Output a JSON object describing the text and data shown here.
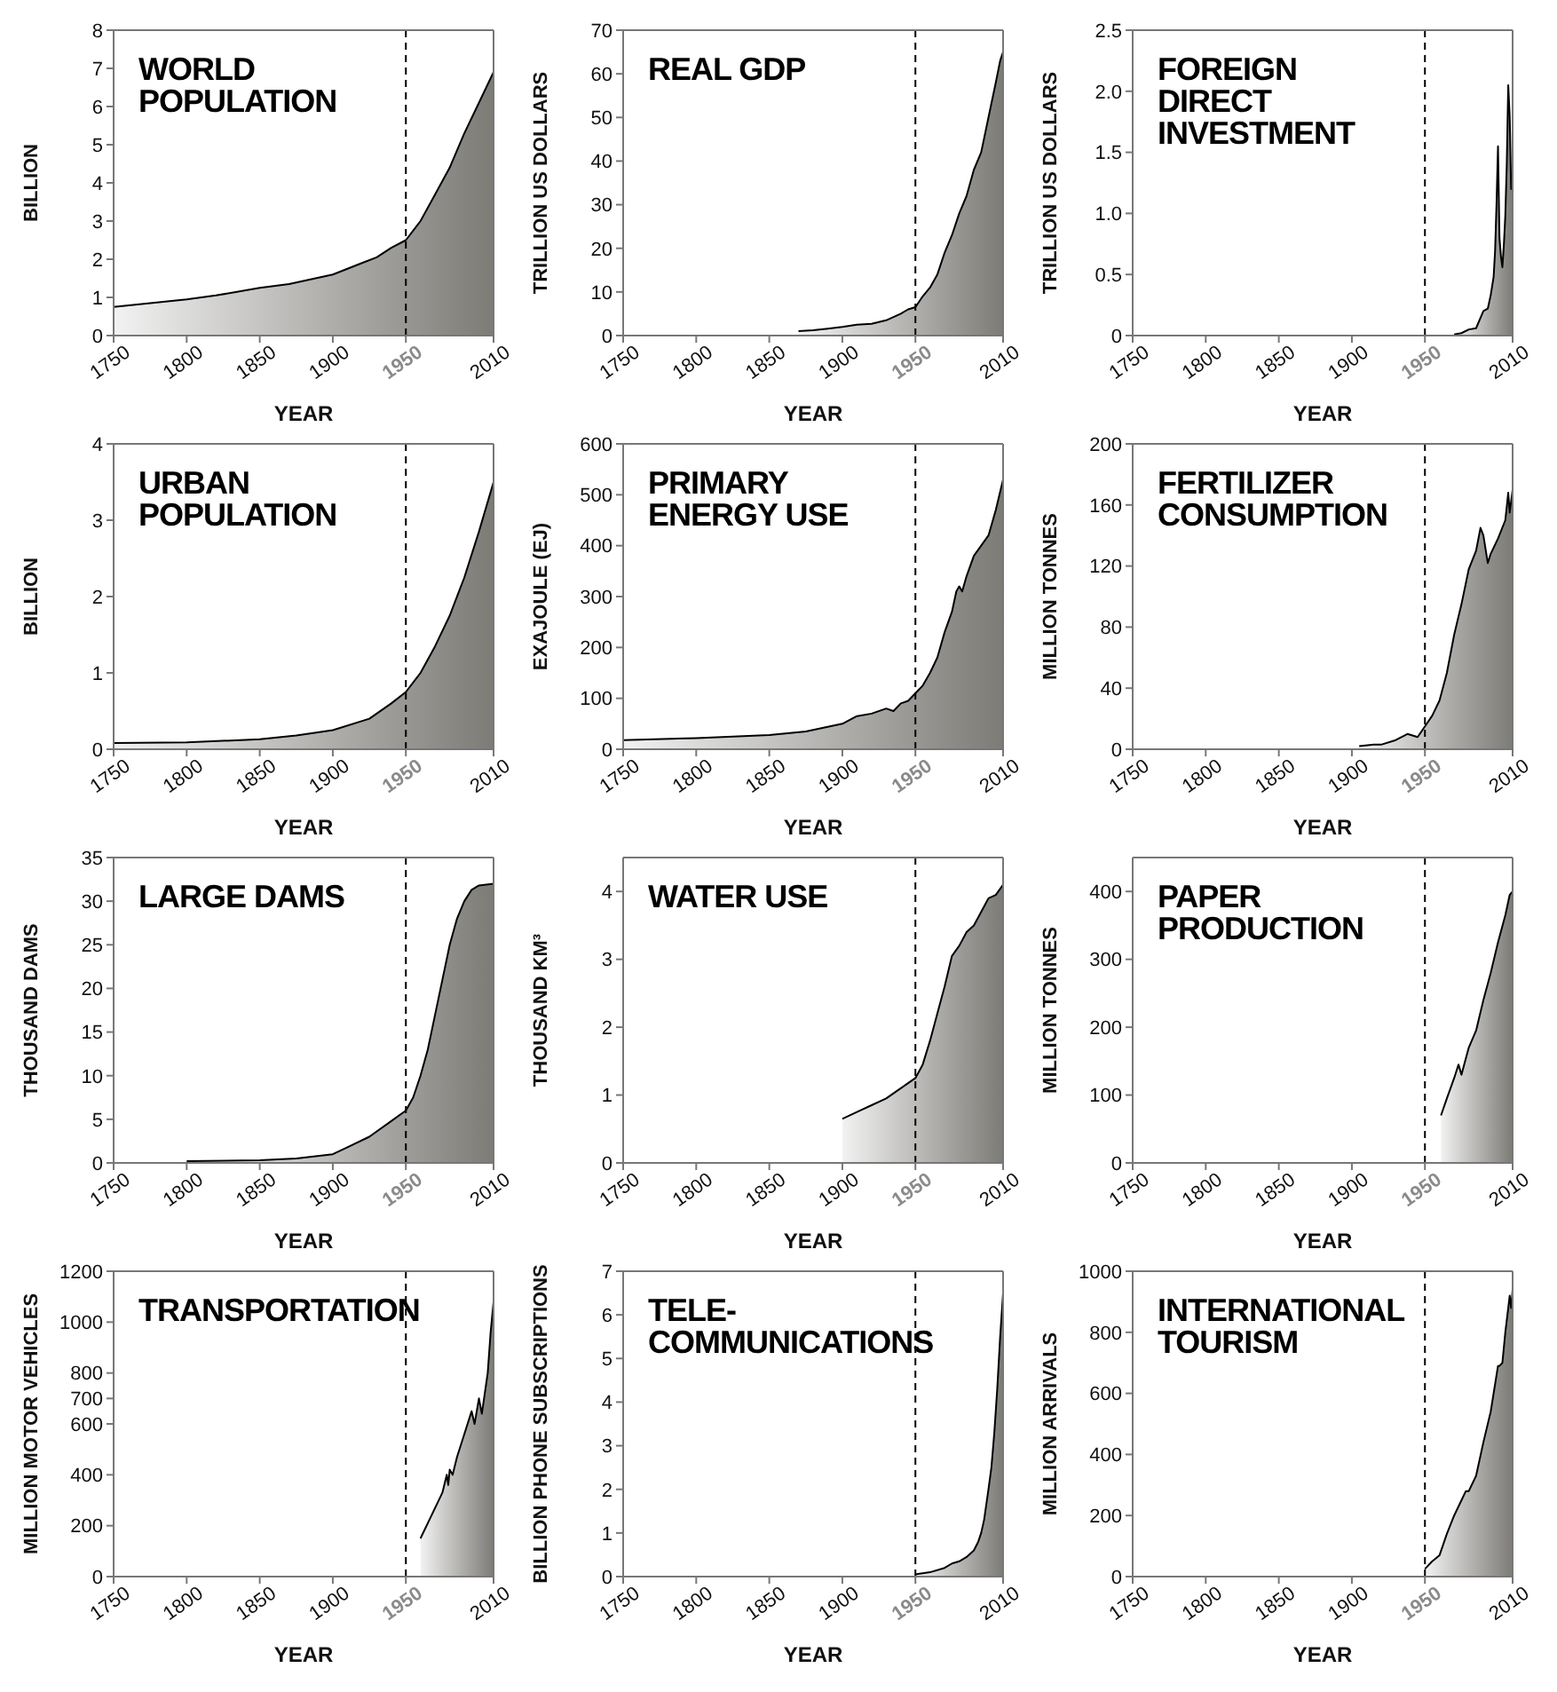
{
  "chart_data": [
    {
      "type": "area",
      "title": "WORLD POPULATION",
      "xlabel": "YEAR",
      "ylabel": "BILLION",
      "color": "#7d7b76",
      "xlim": [
        1750,
        2010
      ],
      "xticks": [
        1750,
        1800,
        1850,
        1900,
        1950,
        2010
      ],
      "ylim": [
        0,
        8
      ],
      "yticks": [
        0,
        1,
        2,
        3,
        4,
        5,
        6,
        7,
        8
      ],
      "ref_lines": [
        {
          "axis": "x",
          "value": 1950,
          "color": "#000000",
          "line_style": "dashed"
        }
      ],
      "x": [
        1750,
        1800,
        1820,
        1850,
        1870,
        1900,
        1920,
        1930,
        1940,
        1950,
        1960,
        1970,
        1980,
        1990,
        2000,
        2010
      ],
      "values": [
        0.75,
        0.95,
        1.05,
        1.25,
        1.35,
        1.6,
        1.9,
        2.05,
        2.3,
        2.5,
        3.0,
        3.7,
        4.4,
        5.3,
        6.1,
        6.9
      ]
    },
    {
      "type": "area",
      "title": "REAL GDP",
      "xlabel": "YEAR",
      "ylabel": "TRILLION US DOLLARS",
      "color": "#7d7b76",
      "xlim": [
        1750,
        2010
      ],
      "xticks": [
        1750,
        1800,
        1850,
        1900,
        1950,
        2010
      ],
      "ylim": [
        0,
        70
      ],
      "yticks": [
        0,
        10,
        20,
        30,
        40,
        50,
        60,
        70
      ],
      "ref_lines": [
        {
          "axis": "x",
          "value": 1950,
          "color": "#000000",
          "line_style": "dashed"
        }
      ],
      "x": [
        1870,
        1880,
        1890,
        1900,
        1910,
        1920,
        1930,
        1940,
        1945,
        1950,
        1955,
        1960,
        1965,
        1970,
        1975,
        1980,
        1985,
        1990,
        1995,
        2000,
        2005,
        2008,
        2010
      ],
      "values": [
        1,
        1.2,
        1.6,
        2,
        2.5,
        2.7,
        3.5,
        5,
        6,
        6.5,
        9,
        11,
        14,
        19,
        23,
        28,
        32,
        38,
        42,
        50,
        58,
        63,
        65
      ]
    },
    {
      "type": "area",
      "title": "FOREIGN DIRECT INVESTMENT",
      "xlabel": "YEAR",
      "ylabel": "TRILLION US DOLLARS",
      "color": "#7d7b76",
      "xlim": [
        1750,
        2010
      ],
      "xticks": [
        1750,
        1800,
        1850,
        1900,
        1950,
        2010
      ],
      "ylim": [
        0,
        2.5
      ],
      "yticks": [
        0,
        0.5,
        {
          "value": 1,
          "label": "1.0"
        },
        1.5,
        {
          "value": 2,
          "label": "2.0"
        },
        2.5
      ],
      "ref_lines": [
        {
          "axis": "x",
          "value": 1950,
          "color": "#000000",
          "line_style": "dashed"
        }
      ],
      "x": [
        1970,
        1975,
        1980,
        1985,
        1990,
        1993,
        1995,
        1997,
        1998,
        1999,
        2000,
        2001,
        2002,
        2003,
        2004,
        2005,
        2006,
        2007,
        2008,
        2009,
        2010
      ],
      "values": [
        0.01,
        0.02,
        0.05,
        0.06,
        0.2,
        0.22,
        0.33,
        0.48,
        0.69,
        1.08,
        1.55,
        0.8,
        0.65,
        0.56,
        0.74,
        0.98,
        1.4,
        2.05,
        1.8,
        1.2,
        1.3
      ]
    },
    {
      "type": "area",
      "title": "URBAN POPULATION",
      "xlabel": "YEAR",
      "ylabel": "BILLION",
      "color": "#7d7b76",
      "xlim": [
        1750,
        2010
      ],
      "xticks": [
        1750,
        1800,
        1850,
        1900,
        1950,
        2010
      ],
      "ylim": [
        0,
        4
      ],
      "yticks": [
        0,
        1,
        2,
        3,
        4
      ],
      "ref_lines": [
        {
          "axis": "x",
          "value": 1950,
          "color": "#000000",
          "line_style": "dashed"
        }
      ],
      "x": [
        1750,
        1800,
        1850,
        1875,
        1900,
        1925,
        1940,
        1950,
        1960,
        1970,
        1980,
        1990,
        2000,
        2010
      ],
      "values": [
        0.08,
        0.09,
        0.13,
        0.18,
        0.25,
        0.4,
        0.6,
        0.75,
        1.0,
        1.35,
        1.75,
        2.25,
        2.85,
        3.5
      ]
    },
    {
      "type": "area",
      "title": "PRIMARY ENERGY USE",
      "xlabel": "YEAR",
      "ylabel": "EXAJOULE (EJ)",
      "color": "#7d7b76",
      "xlim": [
        1750,
        2010
      ],
      "xticks": [
        1750,
        1800,
        1850,
        1900,
        1950,
        2010
      ],
      "ylim": [
        0,
        600
      ],
      "yticks": [
        0,
        100,
        200,
        300,
        400,
        500,
        600
      ],
      "ref_lines": [
        {
          "axis": "x",
          "value": 1950,
          "color": "#000000",
          "line_style": "dashed"
        }
      ],
      "x": [
        1750,
        1800,
        1850,
        1875,
        1900,
        1910,
        1920,
        1930,
        1935,
        1940,
        1945,
        1950,
        1955,
        1960,
        1965,
        1970,
        1975,
        1978,
        1980,
        1982,
        1985,
        1990,
        1995,
        2000,
        2005,
        2010
      ],
      "values": [
        18,
        22,
        28,
        35,
        50,
        65,
        70,
        80,
        75,
        90,
        95,
        110,
        125,
        150,
        180,
        230,
        270,
        310,
        320,
        310,
        340,
        380,
        400,
        420,
        470,
        530
      ]
    },
    {
      "type": "area",
      "title": "FERTILIZER CONSUMPTION",
      "xlabel": "YEAR",
      "ylabel": "MILLION TONNES",
      "color": "#7d7b76",
      "xlim": [
        1750,
        2010
      ],
      "xticks": [
        1750,
        1800,
        1850,
        1900,
        1950,
        2010
      ],
      "ylim": [
        0,
        200
      ],
      "yticks": [
        0,
        40,
        80,
        120,
        160,
        200
      ],
      "ref_lines": [
        {
          "axis": "x",
          "value": 1950,
          "color": "#000000",
          "line_style": "dashed"
        }
      ],
      "x": [
        1905,
        1915,
        1920,
        1930,
        1938,
        1945,
        1950,
        1955,
        1960,
        1965,
        1970,
        1975,
        1980,
        1985,
        1988,
        1990,
        1993,
        1995,
        2000,
        2005,
        2007,
        2008,
        2010
      ],
      "values": [
        2,
        3,
        3,
        6,
        10,
        8,
        15,
        22,
        32,
        50,
        75,
        95,
        118,
        130,
        145,
        140,
        122,
        128,
        138,
        150,
        168,
        155,
        170
      ]
    },
    {
      "type": "area",
      "title": "LARGE DAMS",
      "xlabel": "YEAR",
      "ylabel": "THOUSAND DAMS",
      "color": "#7d7b76",
      "xlim": [
        1750,
        2010
      ],
      "xticks": [
        1750,
        1800,
        1850,
        1900,
        1950,
        2010
      ],
      "ylim": [
        0,
        35
      ],
      "yticks": [
        0,
        5,
        10,
        15,
        20,
        25,
        30,
        35
      ],
      "ref_lines": [
        {
          "axis": "x",
          "value": 1950,
          "color": "#000000",
          "line_style": "dashed"
        }
      ],
      "x": [
        1800,
        1850,
        1875,
        1900,
        1910,
        1925,
        1940,
        1950,
        1955,
        1960,
        1965,
        1970,
        1975,
        1980,
        1985,
        1990,
        1995,
        2000,
        2010
      ],
      "values": [
        0.2,
        0.3,
        0.5,
        1,
        1.8,
        3,
        4.8,
        6,
        7.5,
        10,
        13,
        17,
        21,
        25,
        28,
        30,
        31.3,
        31.8,
        32
      ]
    },
    {
      "type": "area",
      "title": "WATER USE",
      "xlabel": "YEAR",
      "ylabel": "THOUSAND KM³",
      "color": "#7d7b76",
      "xlim": [
        1750,
        2010
      ],
      "xticks": [
        1750,
        1800,
        1850,
        1900,
        1950,
        2010
      ],
      "ylim": [
        0,
        4.5
      ],
      "yticks": [
        0,
        1,
        2,
        3,
        4
      ],
      "ref_lines": [
        {
          "axis": "x",
          "value": 1950,
          "color": "#000000",
          "line_style": "dashed"
        }
      ],
      "x": [
        1900,
        1910,
        1920,
        1930,
        1940,
        1950,
        1955,
        1960,
        1965,
        1970,
        1975,
        1980,
        1985,
        1990,
        1995,
        2000,
        2005,
        2010
      ],
      "values": [
        0.65,
        0.75,
        0.85,
        0.95,
        1.1,
        1.25,
        1.45,
        1.8,
        2.2,
        2.6,
        3.05,
        3.2,
        3.4,
        3.5,
        3.7,
        3.9,
        3.95,
        4.1
      ]
    },
    {
      "type": "area",
      "title": "PAPER PRODUCTION",
      "xlabel": "YEAR",
      "ylabel": "MILLION TONNES",
      "color": "#7d7b76",
      "xlim": [
        1750,
        2010
      ],
      "xticks": [
        1750,
        1800,
        1850,
        1900,
        1950,
        2010
      ],
      "ylim": [
        0,
        450
      ],
      "yticks": [
        0,
        100,
        200,
        300,
        400
      ],
      "ref_lines": [
        {
          "axis": "x",
          "value": 1950,
          "color": "#000000",
          "line_style": "dashed"
        }
      ],
      "x": [
        1961,
        1965,
        1970,
        1973,
        1975,
        1980,
        1985,
        1990,
        1995,
        2000,
        2005,
        2008,
        2010
      ],
      "values": [
        70,
        95,
        125,
        145,
        130,
        170,
        195,
        240,
        280,
        325,
        365,
        395,
        400
      ]
    },
    {
      "type": "area",
      "title": "TRANSPORTATION",
      "xlabel": "YEAR",
      "ylabel": "MILLION MOTOR VEHICLES",
      "color": "#7d7b76",
      "xlim": [
        1750,
        2010
      ],
      "xticks": [
        1750,
        1800,
        1850,
        1900,
        1950,
        2010
      ],
      "ylim": [
        0,
        1200
      ],
      "yticks": [
        0,
        200,
        400,
        600,
        700,
        800,
        1000,
        1200
      ],
      "ref_lines": [
        {
          "axis": "x",
          "value": 1950,
          "color": "#000000",
          "line_style": "dashed"
        }
      ],
      "x": [
        1960,
        1970,
        1975,
        1978,
        1979,
        1980,
        1982,
        1985,
        1990,
        1995,
        1997,
        2000,
        2002,
        2004,
        2006,
        2008,
        2010
      ],
      "values": [
        150,
        270,
        330,
        400,
        360,
        420,
        400,
        470,
        560,
        650,
        600,
        700,
        640,
        720,
        800,
        960,
        1080
      ]
    },
    {
      "type": "area",
      "title": "TELE-COMMUNICATIONS",
      "xlabel": "YEAR",
      "ylabel": "BILLION PHONE SUBSCRIPTIONS",
      "color": "#7d7b76",
      "xlim": [
        1750,
        2010
      ],
      "xticks": [
        1750,
        1800,
        1850,
        1900,
        1950,
        2010
      ],
      "ylim": [
        0,
        7
      ],
      "yticks": [
        0,
        1,
        2,
        3,
        4,
        5,
        6,
        7
      ],
      "ref_lines": [
        {
          "axis": "x",
          "value": 1950,
          "color": "#000000",
          "line_style": "dashed"
        }
      ],
      "x": [
        1950,
        1960,
        1970,
        1975,
        1980,
        1985,
        1990,
        1993,
        1995,
        1997,
        2000,
        2002,
        2004,
        2006,
        2008,
        2010
      ],
      "values": [
        0.05,
        0.1,
        0.2,
        0.3,
        0.35,
        0.45,
        0.6,
        0.8,
        1.0,
        1.3,
        2.0,
        2.5,
        3.3,
        4.3,
        5.5,
        6.5
      ]
    },
    {
      "type": "area",
      "title": "INTERNATIONAL TOURISM",
      "xlabel": "YEAR",
      "ylabel": "MILLION ARRIVALS",
      "color": "#7d7b76",
      "xlim": [
        1750,
        2010
      ],
      "xticks": [
        1750,
        1800,
        1850,
        1900,
        1950,
        2010
      ],
      "ylim": [
        0,
        1000
      ],
      "yticks": [
        0,
        200,
        400,
        600,
        800,
        1000
      ],
      "ref_lines": [
        {
          "axis": "x",
          "value": 1950,
          "color": "#000000",
          "line_style": "dashed"
        }
      ],
      "x": [
        1950,
        1955,
        1960,
        1965,
        1970,
        1975,
        1978,
        1980,
        1982,
        1985,
        1990,
        1995,
        2000,
        2001,
        2003,
        2005,
        2008,
        2009,
        2010
      ],
      "values": [
        25,
        50,
        70,
        140,
        200,
        250,
        280,
        280,
        300,
        330,
        440,
        540,
        690,
        690,
        700,
        800,
        920,
        880,
        940
      ]
    }
  ]
}
